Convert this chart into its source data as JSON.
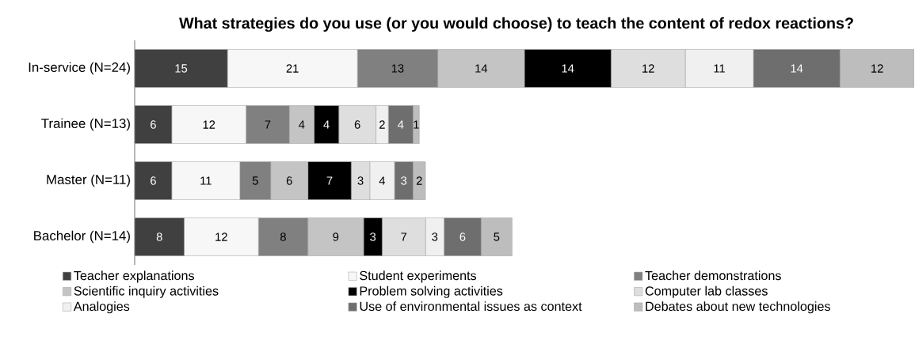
{
  "chart_data": {
    "type": "bar",
    "orientation": "horizontal",
    "stacked": true,
    "data_labels": true,
    "legend": "bottom",
    "title": "What strategies do you use (or you would choose) to teach the content of redox reactions?",
    "categories": [
      "In-service (N=24)",
      "Trainee (N=13)",
      "Master (N=11)",
      "Bachelor (N=14)"
    ],
    "series": [
      {
        "name": "Teacher explanations",
        "color": "#404040",
        "values": [
          15,
          6,
          6,
          8
        ]
      },
      {
        "name": "Student experiments",
        "color": "#f7f7f7",
        "values": [
          21,
          12,
          11,
          12
        ]
      },
      {
        "name": "Teacher demonstrations",
        "color": "#808080",
        "values": [
          13,
          7,
          5,
          8
        ]
      },
      {
        "name": "Scientific inquiry activities",
        "color": "#c4c4c4",
        "values": [
          14,
          4,
          6,
          9
        ]
      },
      {
        "name": "Problem solving activities",
        "color": "#000000",
        "values": [
          14,
          4,
          7,
          3
        ]
      },
      {
        "name": "Computer lab classes",
        "color": "#dedede",
        "values": [
          12,
          6,
          3,
          7
        ]
      },
      {
        "name": "Analogies",
        "color": "#f0f0f0",
        "values": [
          11,
          2,
          4,
          3
        ]
      },
      {
        "name": "Use of environmental issues as context",
        "color": "#6e6e6e",
        "values": [
          14,
          4,
          3,
          6
        ]
      },
      {
        "name": "Debates about new technologies",
        "color": "#bdbdbd",
        "values": [
          12,
          1,
          2,
          5
        ]
      }
    ]
  }
}
